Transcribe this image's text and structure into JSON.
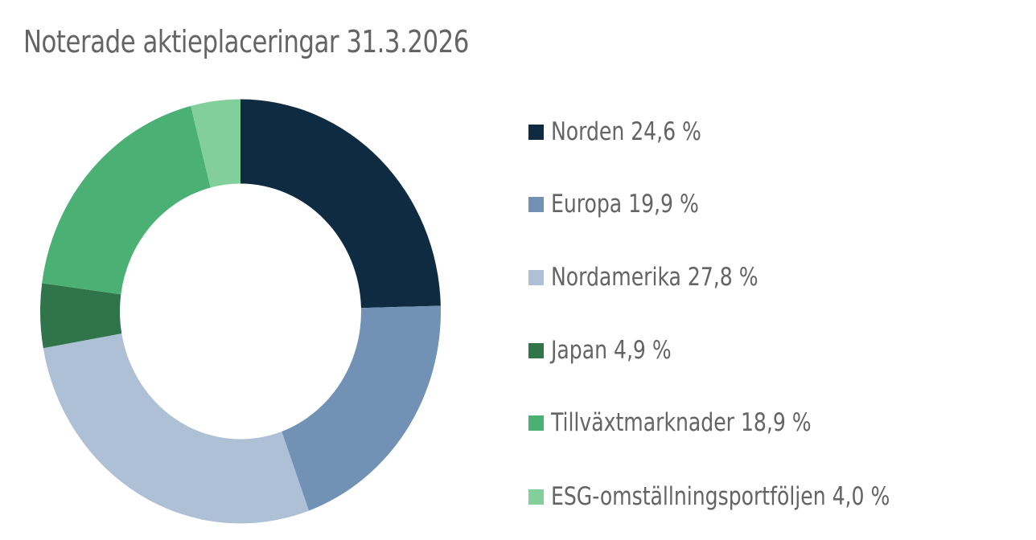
{
  "title": "Noterade aktieplaceringar 31.3.2026",
  "legend": [
    {
      "label": "Norden 24,6 %",
      "color": "#0e2b42"
    },
    {
      "label": "Europa 19,9 %",
      "color": "#7192b5"
    },
    {
      "label": "Nordamerika 27,8 %",
      "color": "#adc0d5"
    },
    {
      "label": "Japan 4,9 %",
      "color": "#30744a"
    },
    {
      "label": "Tillväxtmarknader 18,9 %",
      "color": "#4bb074"
    },
    {
      "label": "ESG-omställningsportföljen 4,0 %",
      "color": "#83cf9b"
    }
  ],
  "chart_data": {
    "type": "pie",
    "subtype": "donut",
    "title": "Noterade aktieplaceringar 31.3.2026",
    "categories": [
      "Norden",
      "Europa",
      "Nordamerika",
      "Japan",
      "Tillväxtmarknader",
      "ESG-omställningsportföljen"
    ],
    "values": [
      24.6,
      19.9,
      27.8,
      4.9,
      18.9,
      4.0
    ],
    "unit": "%",
    "colors": [
      "#0e2b42",
      "#7192b5",
      "#adc0d5",
      "#30744a",
      "#4bb074",
      "#83cf9b"
    ],
    "start_angle": "12 o'clock, clockwise",
    "legend_position": "right"
  }
}
